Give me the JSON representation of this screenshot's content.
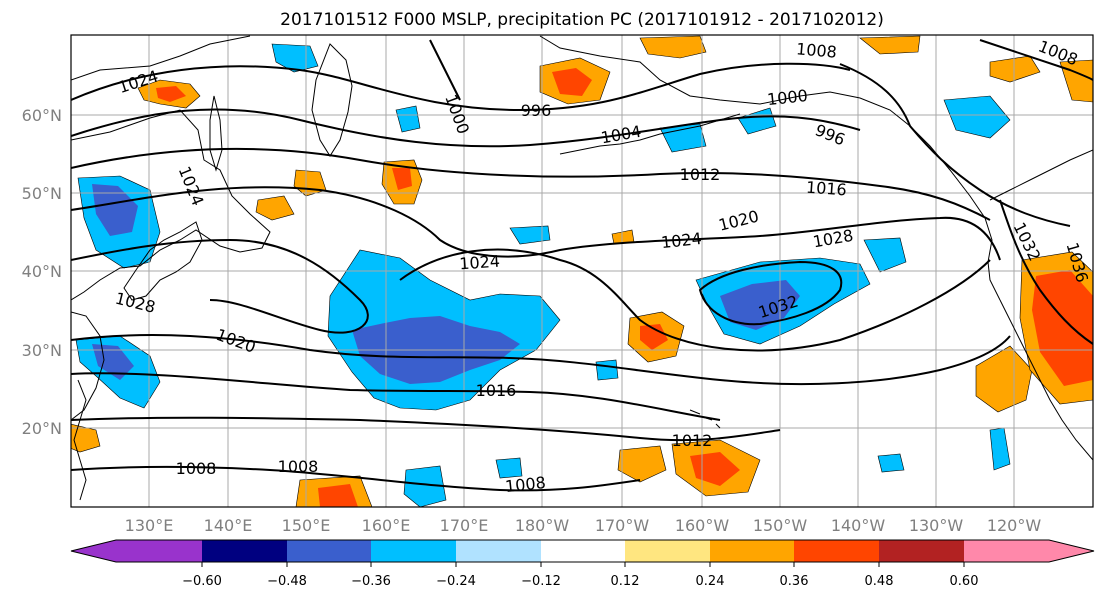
{
  "title": "2017101512 F000 MSLP, precipitation PC (2017101912 - 2017102012)",
  "lat_labels": [
    "60°N",
    "50°N",
    "40°N",
    "30°N",
    "20°N"
  ],
  "lon_labels": [
    "130°E",
    "140°E",
    "150°E",
    "160°E",
    "170°E",
    "180°W",
    "170°W",
    "160°W",
    "150°W",
    "140°W",
    "130°W",
    "120°W"
  ],
  "isobar_labels": [
    {
      "text": "1024"
    },
    {
      "text": "1008"
    },
    {
      "text": "1008"
    },
    {
      "text": "996"
    },
    {
      "text": "1000"
    },
    {
      "text": "1000"
    },
    {
      "text": "1004"
    },
    {
      "text": "996"
    },
    {
      "text": "1024"
    },
    {
      "text": "1012"
    },
    {
      "text": "1016"
    },
    {
      "text": "1020"
    },
    {
      "text": "1024"
    },
    {
      "text": "1024"
    },
    {
      "text": "1028"
    },
    {
      "text": "1032"
    },
    {
      "text": "1028"
    },
    {
      "text": "1020"
    },
    {
      "text": "1016"
    },
    {
      "text": "1012"
    },
    {
      "text": "1008"
    },
    {
      "text": "1008"
    },
    {
      "text": "1008"
    },
    {
      "text": "1032"
    },
    {
      "text": "1036"
    }
  ],
  "colorbar": {
    "colors": [
      "#9933cc",
      "#000080",
      "#3a5fcd",
      "#00bfff",
      "#b0e2ff",
      "#ffffff",
      "#ffe680",
      "#ffa500",
      "#ff4500",
      "#b22222",
      "#ff88aa"
    ],
    "ticks": [
      "−0.60",
      "−0.48",
      "−0.36",
      "−0.24",
      "−0.12",
      "0.12",
      "0.24",
      "0.36",
      "0.48",
      "0.60"
    ]
  }
}
